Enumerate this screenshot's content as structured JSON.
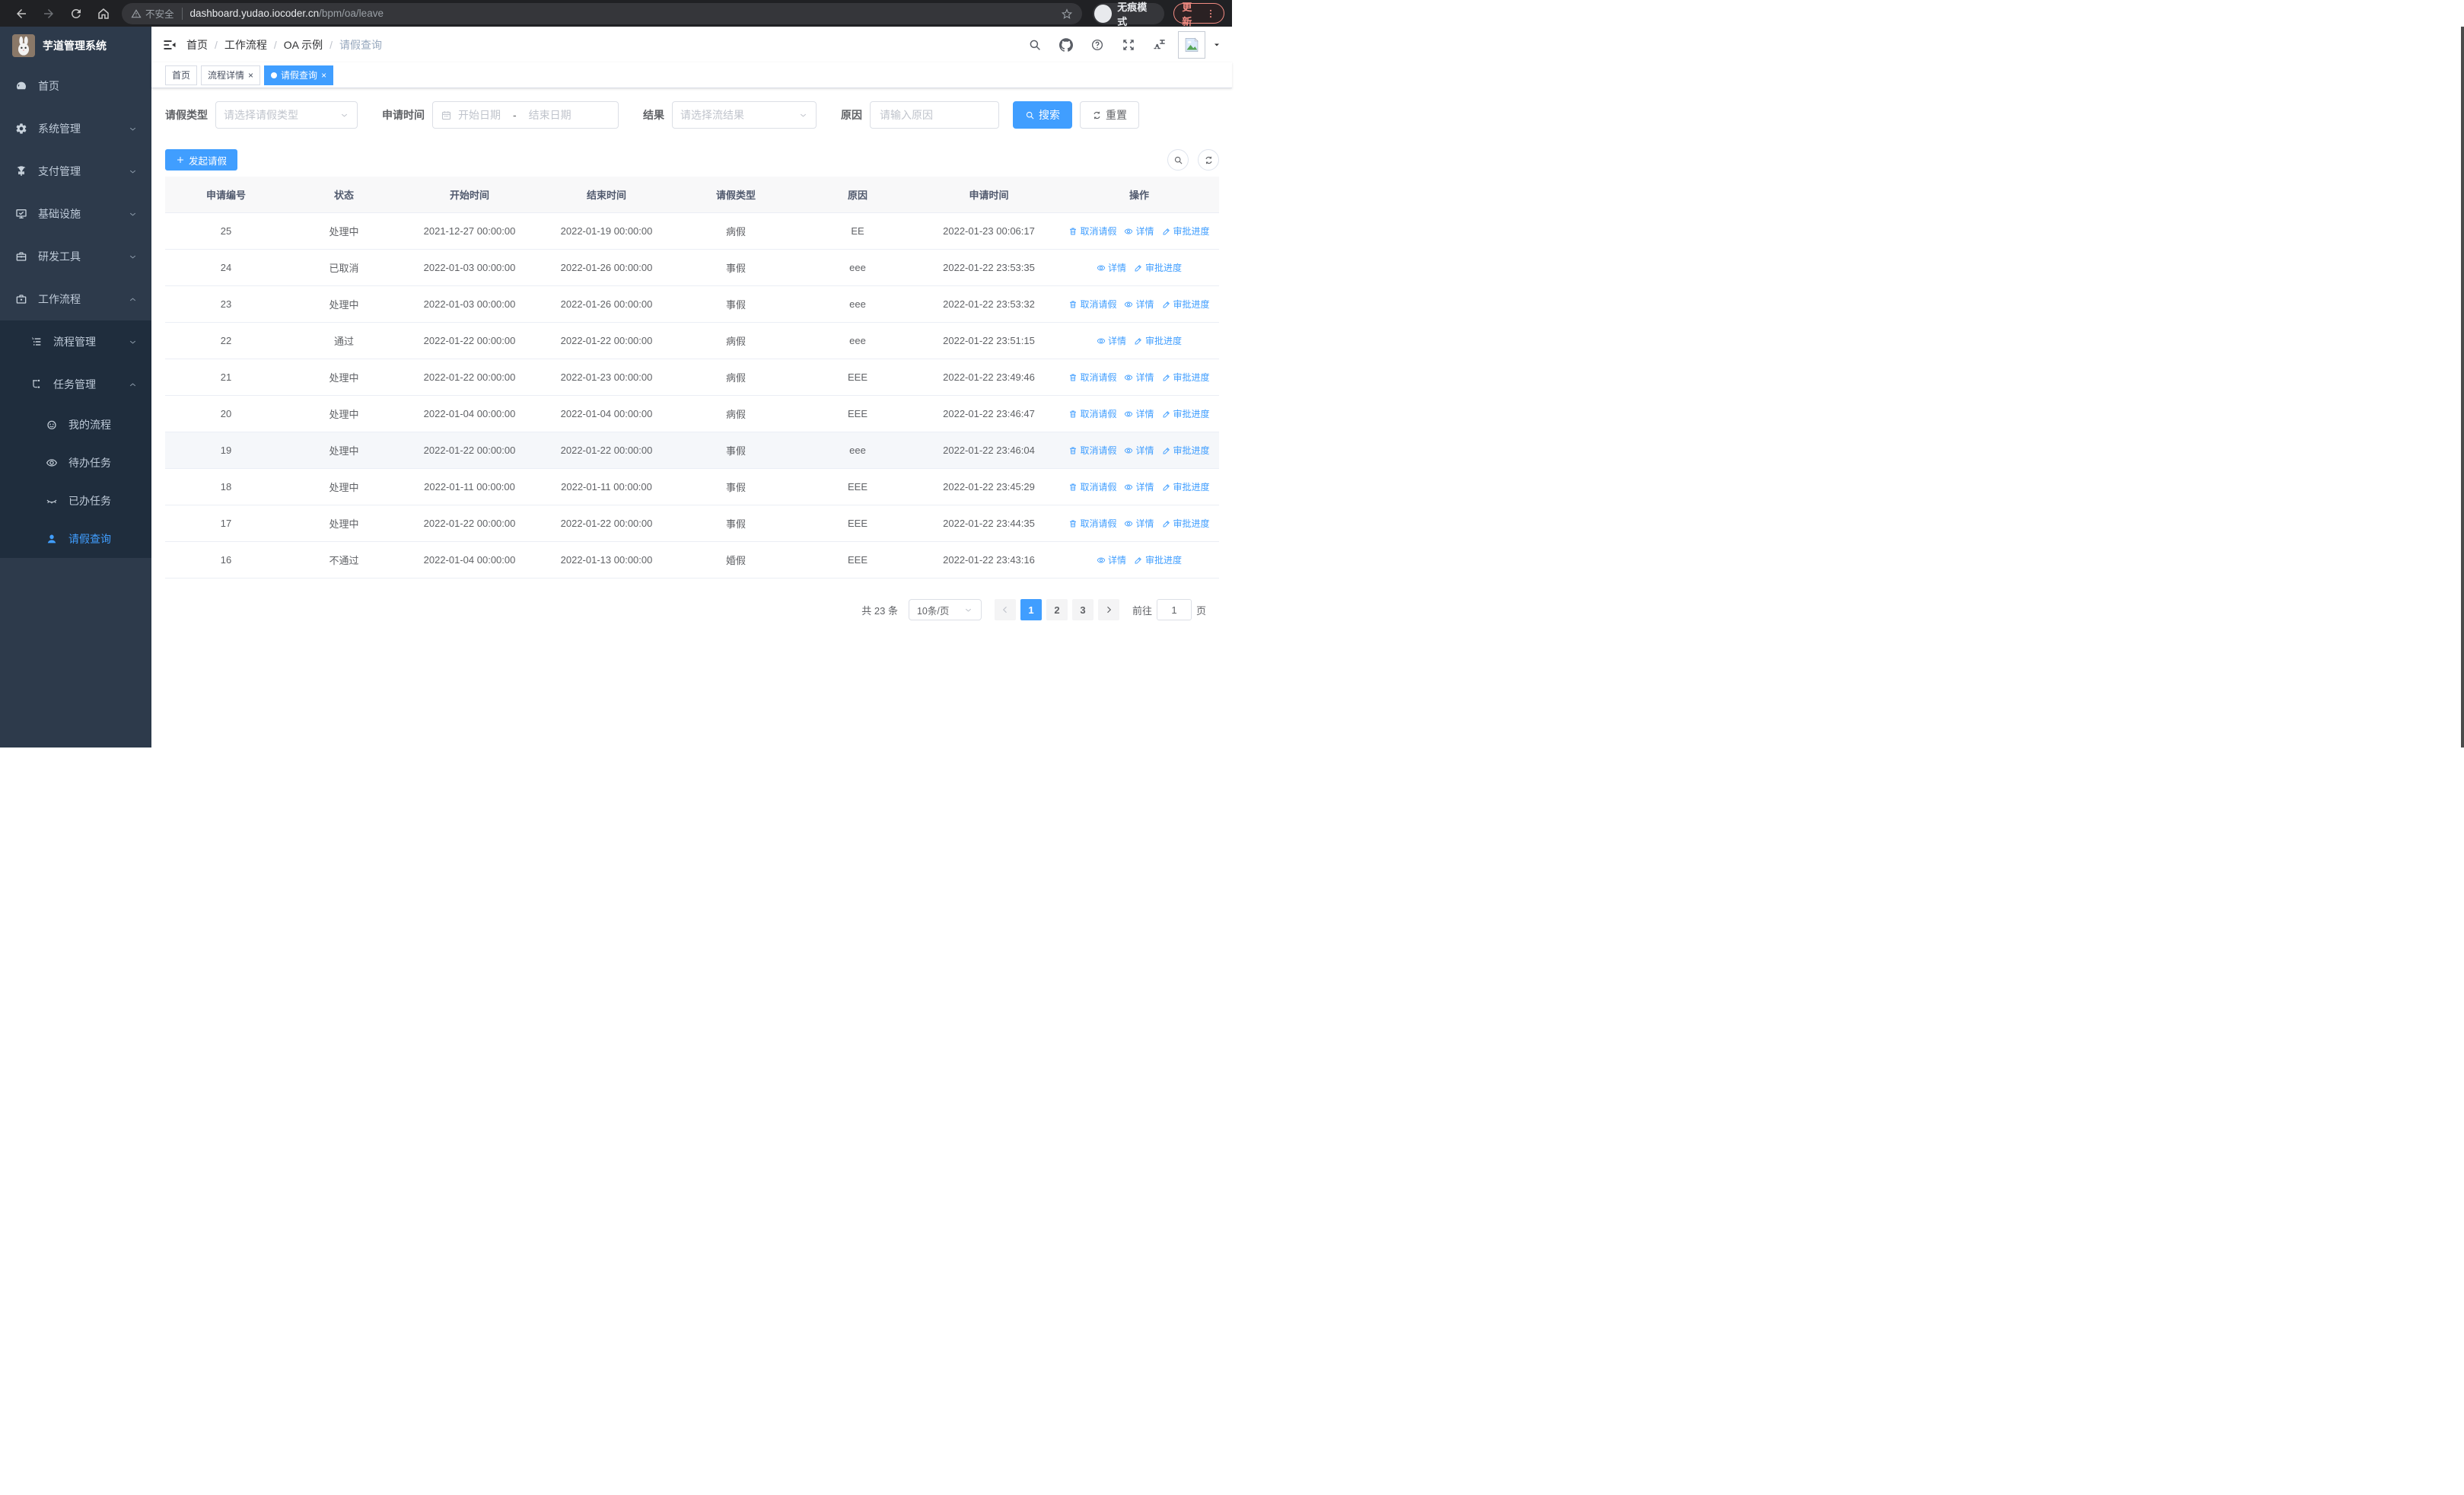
{
  "browser": {
    "security_label": "不安全",
    "url_host": "dashboard.yudao.iocoder.cn",
    "url_path": "/bpm/oa/leave",
    "incognito_label": "无痕模式",
    "update_label": "更新"
  },
  "sidebar": {
    "app_title": "芋道管理系统",
    "items": [
      {
        "key": "home",
        "label": "首页",
        "icon": "dashboard-icon",
        "level": 1,
        "arrow": null,
        "dark": false,
        "active": false
      },
      {
        "key": "system",
        "label": "系统管理",
        "icon": "gear-icon",
        "level": 1,
        "arrow": "down",
        "dark": false,
        "active": false
      },
      {
        "key": "payment",
        "label": "支付管理",
        "icon": "yen-icon",
        "level": 1,
        "arrow": "down",
        "dark": false,
        "active": false
      },
      {
        "key": "infra",
        "label": "基础设施",
        "icon": "monitor-icon",
        "level": 1,
        "arrow": "down",
        "dark": false,
        "active": false
      },
      {
        "key": "devtools",
        "label": "研发工具",
        "icon": "toolbox-icon",
        "level": 1,
        "arrow": "down",
        "dark": false,
        "active": false
      },
      {
        "key": "workflow",
        "label": "工作流程",
        "icon": "briefcase-icon",
        "level": 1,
        "arrow": "up",
        "dark": false,
        "active": false
      },
      {
        "key": "process-mgmt",
        "label": "流程管理",
        "icon": "list-icon",
        "level": 2,
        "arrow": "down",
        "dark": true,
        "active": false
      },
      {
        "key": "task-mgmt",
        "label": "任务管理",
        "icon": "tree-icon",
        "level": 2,
        "arrow": "up",
        "dark": true,
        "active": false
      },
      {
        "key": "my-process",
        "label": "我的流程",
        "icon": "face-icon",
        "level": 3,
        "arrow": null,
        "dark": true,
        "active": false
      },
      {
        "key": "todo-tasks",
        "label": "待办任务",
        "icon": "eye-open-icon",
        "level": 3,
        "arrow": null,
        "dark": true,
        "active": false
      },
      {
        "key": "done-tasks",
        "label": "已办任务",
        "icon": "eye-closed-icon",
        "level": 3,
        "arrow": null,
        "dark": true,
        "active": false
      },
      {
        "key": "leave-query",
        "label": "请假查询",
        "icon": "user-icon",
        "level": 3,
        "arrow": null,
        "dark": true,
        "active": true
      }
    ]
  },
  "header": {
    "breadcrumb": [
      "首页",
      "工作流程",
      "OA 示例",
      "请假查询"
    ],
    "tabs": [
      {
        "label": "首页",
        "closable": false,
        "active": false
      },
      {
        "label": "流程详情",
        "closable": true,
        "active": false
      },
      {
        "label": "请假查询",
        "closable": true,
        "active": true
      }
    ]
  },
  "filters": {
    "leave_type_label": "请假类型",
    "leave_type_placeholder": "请选择请假类型",
    "apply_time_label": "申请时间",
    "start_date_placeholder": "开始日期",
    "range_separator": "-",
    "end_date_placeholder": "结束日期",
    "result_label": "结果",
    "result_placeholder": "请选择流结果",
    "reason_label": "原因",
    "reason_placeholder": "请输入原因",
    "search_label": "搜索",
    "reset_label": "重置"
  },
  "toolbar": {
    "create_label": "发起请假"
  },
  "table": {
    "columns": [
      "申请编号",
      "状态",
      "开始时间",
      "结束时间",
      "请假类型",
      "原因",
      "申请时间",
      "操作"
    ],
    "action_labels": {
      "cancel": "取消请假",
      "detail": "详情",
      "progress": "审批进度"
    },
    "rows": [
      {
        "id": "25",
        "status": "处理中",
        "start": "2021-12-27 00:00:00",
        "end": "2022-01-19 00:00:00",
        "type": "病假",
        "reason": "EE",
        "apply": "2022-01-23 00:06:17",
        "actions": [
          "cancel",
          "detail",
          "progress"
        ],
        "hover": false
      },
      {
        "id": "24",
        "status": "已取消",
        "start": "2022-01-03 00:00:00",
        "end": "2022-01-26 00:00:00",
        "type": "事假",
        "reason": "eee",
        "apply": "2022-01-22 23:53:35",
        "actions": [
          "detail",
          "progress"
        ],
        "hover": false
      },
      {
        "id": "23",
        "status": "处理中",
        "start": "2022-01-03 00:00:00",
        "end": "2022-01-26 00:00:00",
        "type": "事假",
        "reason": "eee",
        "apply": "2022-01-22 23:53:32",
        "actions": [
          "cancel",
          "detail",
          "progress"
        ],
        "hover": false
      },
      {
        "id": "22",
        "status": "通过",
        "start": "2022-01-22 00:00:00",
        "end": "2022-01-22 00:00:00",
        "type": "病假",
        "reason": "eee",
        "apply": "2022-01-22 23:51:15",
        "actions": [
          "detail",
          "progress"
        ],
        "hover": false
      },
      {
        "id": "21",
        "status": "处理中",
        "start": "2022-01-22 00:00:00",
        "end": "2022-01-23 00:00:00",
        "type": "病假",
        "reason": "EEE",
        "apply": "2022-01-22 23:49:46",
        "actions": [
          "cancel",
          "detail",
          "progress"
        ],
        "hover": false
      },
      {
        "id": "20",
        "status": "处理中",
        "start": "2022-01-04 00:00:00",
        "end": "2022-01-04 00:00:00",
        "type": "病假",
        "reason": "EEE",
        "apply": "2022-01-22 23:46:47",
        "actions": [
          "cancel",
          "detail",
          "progress"
        ],
        "hover": false
      },
      {
        "id": "19",
        "status": "处理中",
        "start": "2022-01-22 00:00:00",
        "end": "2022-01-22 00:00:00",
        "type": "事假",
        "reason": "eee",
        "apply": "2022-01-22 23:46:04",
        "actions": [
          "cancel",
          "detail",
          "progress"
        ],
        "hover": true
      },
      {
        "id": "18",
        "status": "处理中",
        "start": "2022-01-11 00:00:00",
        "end": "2022-01-11 00:00:00",
        "type": "事假",
        "reason": "EEE",
        "apply": "2022-01-22 23:45:29",
        "actions": [
          "cancel",
          "detail",
          "progress"
        ],
        "hover": false
      },
      {
        "id": "17",
        "status": "处理中",
        "start": "2022-01-22 00:00:00",
        "end": "2022-01-22 00:00:00",
        "type": "事假",
        "reason": "EEE",
        "apply": "2022-01-22 23:44:35",
        "actions": [
          "cancel",
          "detail",
          "progress"
        ],
        "hover": false
      },
      {
        "id": "16",
        "status": "不通过",
        "start": "2022-01-04 00:00:00",
        "end": "2022-01-13 00:00:00",
        "type": "婚假",
        "reason": "EEE",
        "apply": "2022-01-22 23:43:16",
        "actions": [
          "detail",
          "progress"
        ],
        "hover": false
      }
    ]
  },
  "pagination": {
    "total_label": "共 23 条",
    "page_size": "10条/页",
    "pages": [
      "1",
      "2",
      "3"
    ],
    "active_page": "1",
    "goto_label": "前往",
    "goto_value": "1",
    "page_unit": "页"
  },
  "colors": {
    "accent": "#409eff",
    "sidebar_bg": "#2d3a4b",
    "submenu_bg": "#1f2d3d",
    "update_accent": "#f28b82"
  }
}
